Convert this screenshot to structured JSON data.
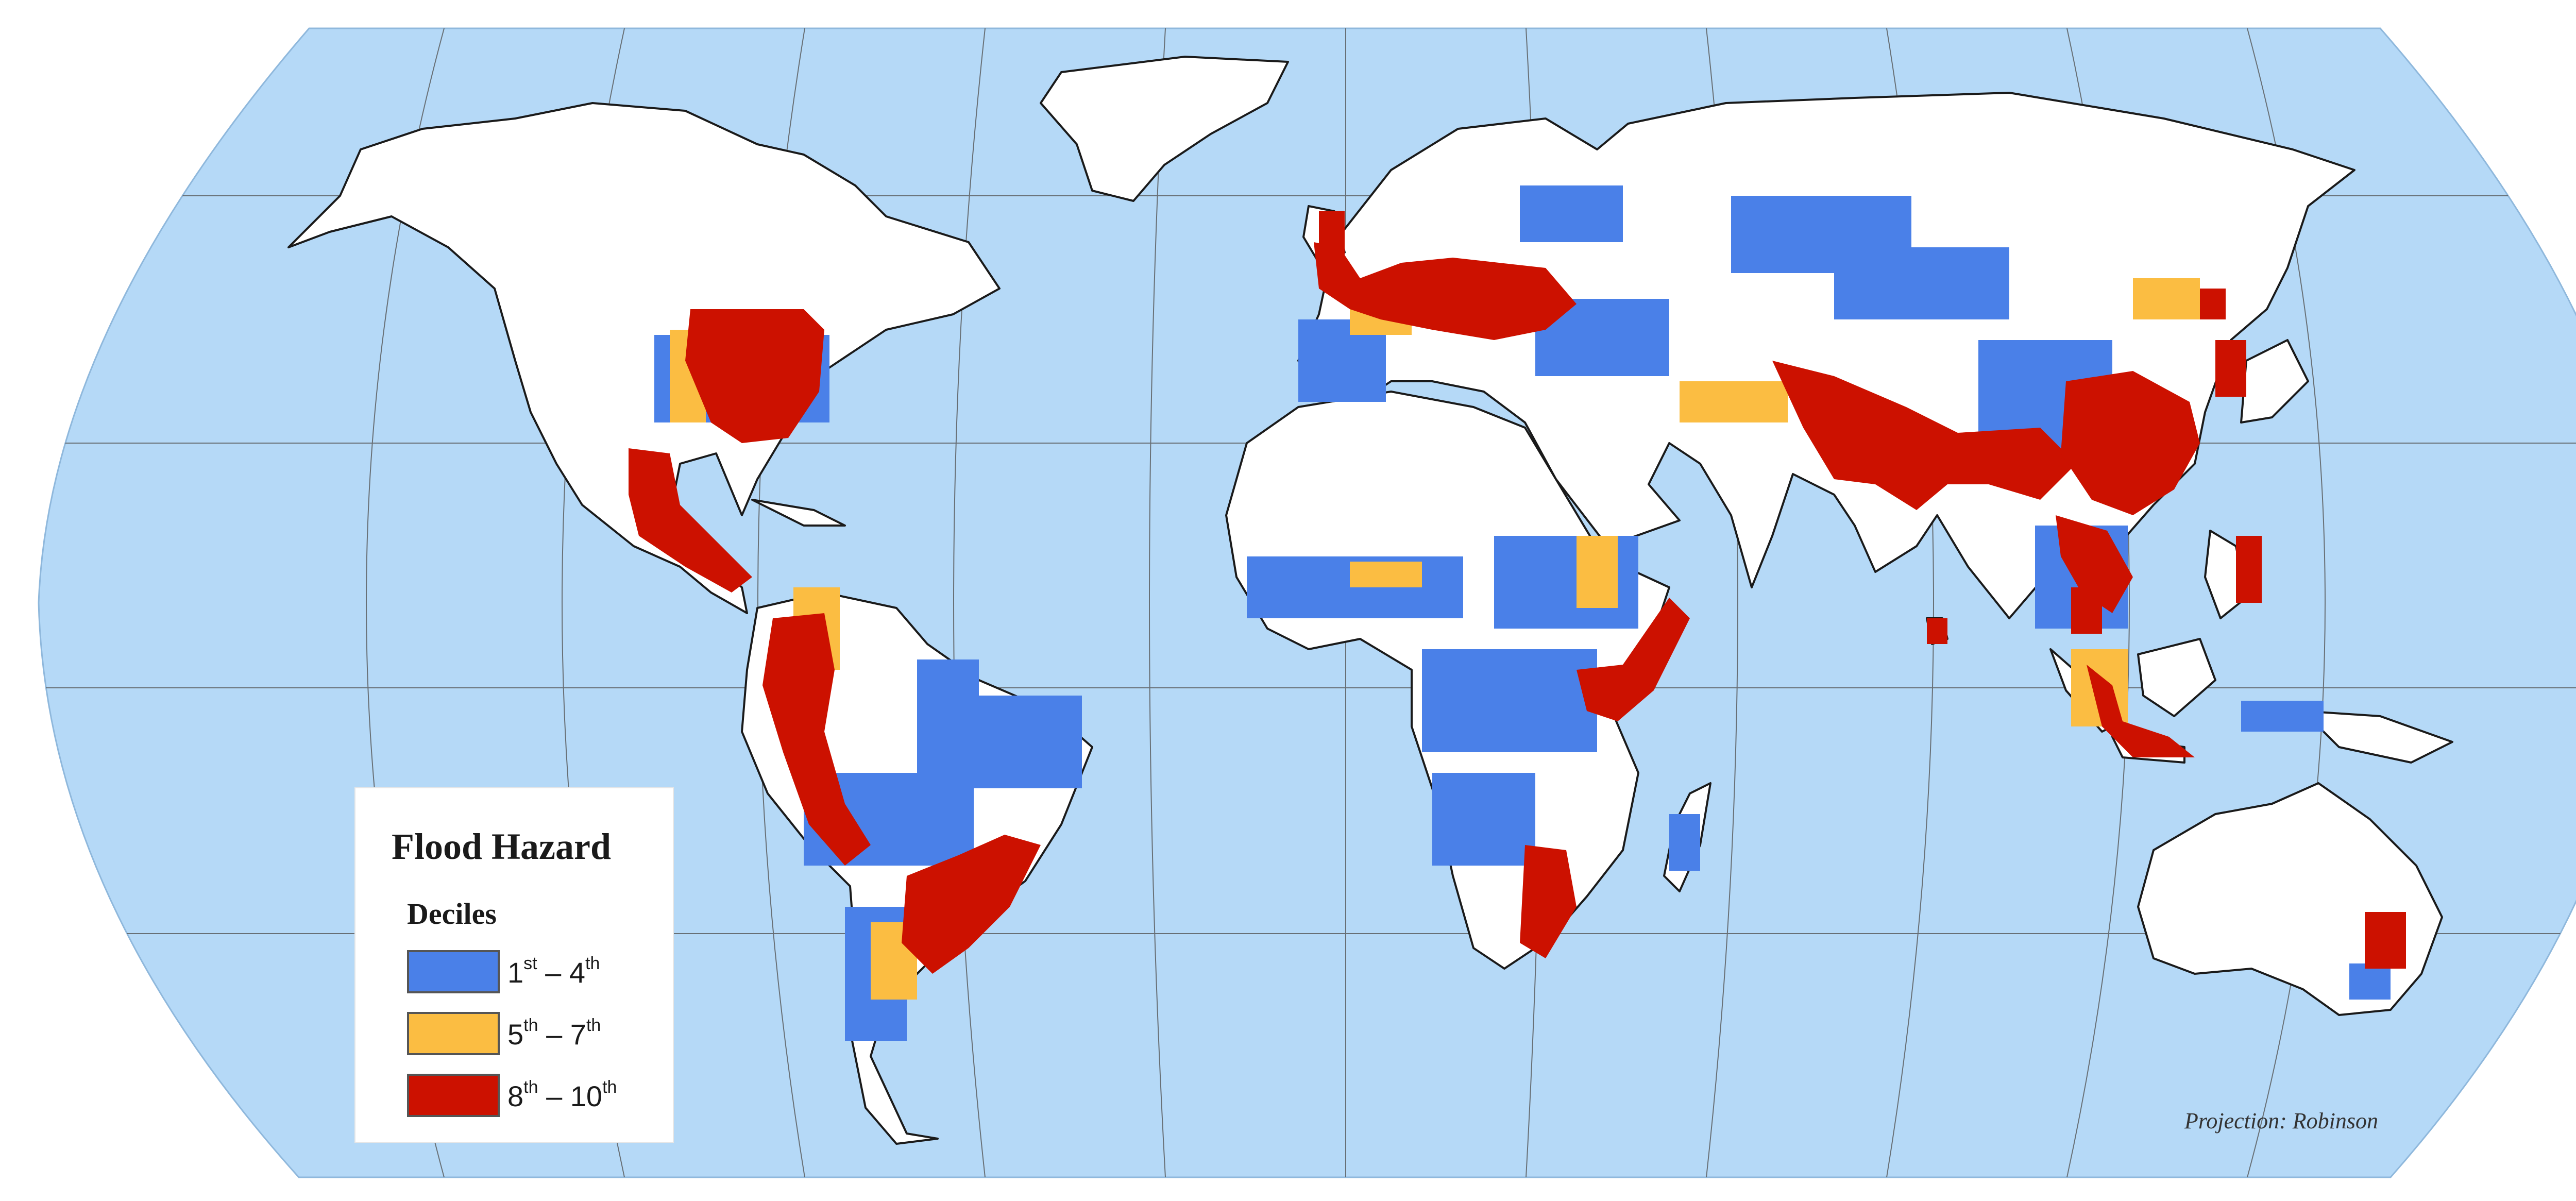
{
  "colors": {
    "ocean": "#b5d9f7",
    "land": "#ffffff",
    "border": "#1a1a1a",
    "graticule": "#555555",
    "low": "#4a80e8",
    "mid": "#fbbd42",
    "high": "#cc1100"
  },
  "legend": {
    "title": "Flood Hazard",
    "subtitle": "Deciles",
    "items": [
      {
        "from": "1",
        "from_sup": "st",
        "dash": " – ",
        "to": "4",
        "to_sup": "th",
        "color": "#4a80e8"
      },
      {
        "from": "5",
        "from_sup": "th",
        "dash": " – ",
        "to": "7",
        "to_sup": "th",
        "color": "#fbbd42"
      },
      {
        "from": "8",
        "from_sup": "th",
        "dash": " – ",
        "to": "10",
        "to_sup": "th",
        "color": "#cc1100"
      }
    ]
  },
  "projection_note": "Projection: Robinson"
}
